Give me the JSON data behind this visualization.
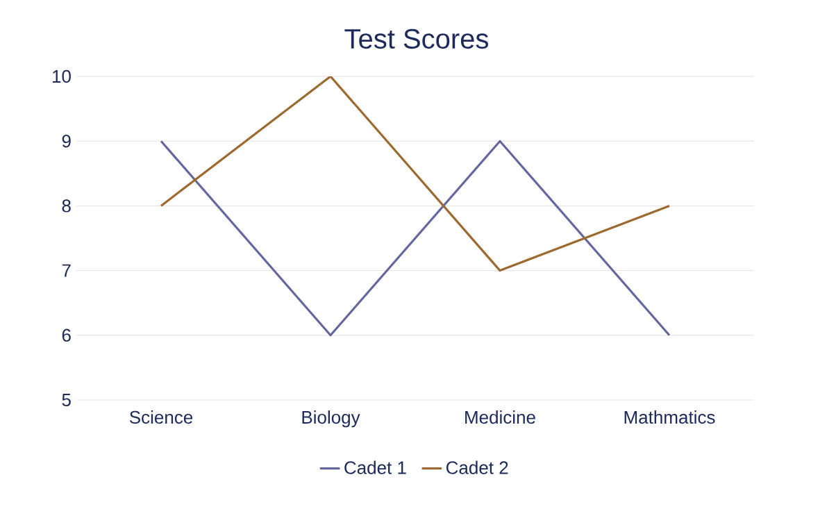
{
  "chart_data": {
    "type": "line",
    "title": "Test Scores",
    "categories": [
      "Science",
      "Biology",
      "Medicine",
      "Mathmatics"
    ],
    "series": [
      {
        "name": "Cadet 1",
        "color": "#6466a0",
        "values": [
          9,
          6,
          9,
          6
        ]
      },
      {
        "name": "Cadet 2",
        "color": "#9c6a2e",
        "values": [
          8,
          10,
          7,
          8
        ]
      }
    ],
    "ylim": [
      5,
      10
    ],
    "yticks": [
      5,
      6,
      7,
      8,
      9,
      10
    ],
    "grid": "y",
    "legend": "bottom",
    "marker": "none",
    "line_style": "solid"
  }
}
